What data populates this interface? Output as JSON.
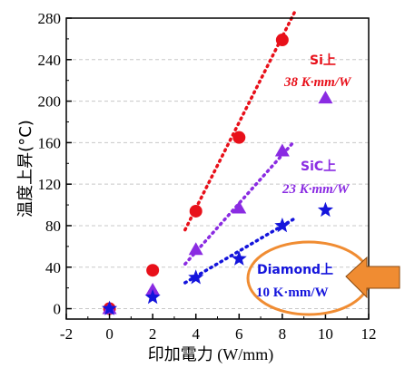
{
  "chart_data": {
    "type": "scatter",
    "xlabel_main": "印加電力",
    "xlabel_unit": " (W/mm)",
    "ylabel": "温度上昇(°C)",
    "xlim": [
      -2,
      12
    ],
    "ylim": [
      -10,
      280
    ],
    "xticks": [
      -2,
      0,
      2,
      4,
      6,
      8,
      10,
      12
    ],
    "yticks": [
      0,
      40,
      80,
      120,
      160,
      200,
      240,
      280
    ],
    "grid": "dashed-horizontal",
    "series": [
      {
        "marker": "circle",
        "color": "#e8101a",
        "x": [
          0,
          2,
          4,
          6,
          8
        ],
        "y": [
          0,
          37,
          94,
          165,
          259
        ],
        "fit": {
          "x": [
            3.5,
            8.6
          ],
          "y": [
            76,
            287
          ]
        },
        "label_main": "Si上",
        "label_value": "38 K·mm/W"
      },
      {
        "marker": "triangle",
        "color": "#8a2be2",
        "x": [
          0,
          2,
          4,
          6,
          8,
          10
        ],
        "y": [
          0,
          18,
          57,
          97,
          152,
          203
        ],
        "fit": {
          "x": [
            3.5,
            8.5
          ],
          "y": [
            43,
            160
          ]
        },
        "label_main": "SiC上",
        "label_value": "23 K·mm/W"
      },
      {
        "marker": "star",
        "color": "#1414dc",
        "x": [
          0,
          2,
          4,
          6,
          8,
          10
        ],
        "y": [
          0,
          11,
          30,
          48,
          80,
          95
        ],
        "fit": {
          "x": [
            3.5,
            8.5
          ],
          "y": [
            25,
            86
          ]
        },
        "label_main": "Diamond上",
        "label_value": "10 K·mm/W"
      }
    ]
  },
  "highlight": {
    "ellipse_color": "#f08c32",
    "arrow_color": "#f08c32"
  },
  "tick_labels": {
    "x": [
      "-2",
      "0",
      "2",
      "4",
      "6",
      "8",
      "10",
      "12"
    ],
    "y": [
      "0",
      "40",
      "80",
      "120",
      "160",
      "200",
      "240",
      "280"
    ]
  }
}
